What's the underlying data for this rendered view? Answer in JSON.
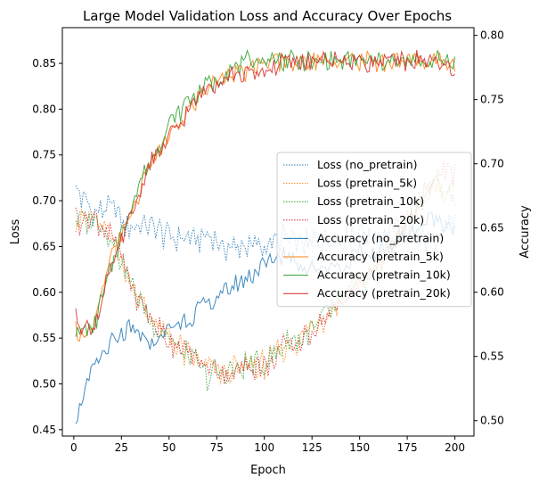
{
  "chart_data": {
    "type": "line",
    "title": "Large Model Validation Loss and Accuracy Over Epochs",
    "xlabel": "Epoch",
    "ylabel_left": "Loss",
    "ylabel_right": "Accuracy",
    "xlim": [
      -6,
      210
    ],
    "ylim_left": [
      0.443,
      0.889
    ],
    "ylim_right": [
      0.488,
      0.806
    ],
    "x_ticks": [
      0,
      25,
      50,
      75,
      100,
      125,
      150,
      175,
      200
    ],
    "y_ticks_left": [
      0.45,
      0.5,
      0.55,
      0.6,
      0.65,
      0.7,
      0.75,
      0.8,
      0.85
    ],
    "y_ticks_right": [
      0.5,
      0.55,
      0.6,
      0.65,
      0.7,
      0.75,
      0.8
    ],
    "grid": false,
    "legend_position": "center-right",
    "x_sampled": [
      1,
      10,
      20,
      30,
      40,
      50,
      60,
      70,
      80,
      90,
      100,
      110,
      120,
      130,
      140,
      150,
      160,
      170,
      180,
      190,
      200
    ],
    "series": [
      {
        "name": "Loss (no_pretrain)",
        "axis": "left",
        "style": "dotted",
        "color": "#1f77b4",
        "values": [
          0.71,
          0.69,
          0.69,
          0.67,
          0.67,
          0.66,
          0.66,
          0.66,
          0.65,
          0.65,
          0.65,
          0.66,
          0.65,
          0.66,
          0.66,
          0.67,
          0.66,
          0.67,
          0.66,
          0.65,
          0.68
        ]
      },
      {
        "name": "Loss (pretrain_5k)",
        "axis": "left",
        "style": "dotted",
        "color": "#ff7f0e",
        "values": [
          0.68,
          0.68,
          0.66,
          0.61,
          0.57,
          0.55,
          0.53,
          0.52,
          0.51,
          0.52,
          0.52,
          0.54,
          0.55,
          0.57,
          0.59,
          0.61,
          0.63,
          0.66,
          0.69,
          0.72,
          0.71
        ]
      },
      {
        "name": "Loss (pretrain_10k)",
        "axis": "left",
        "style": "dotted",
        "color": "#2ca02c",
        "values": [
          0.68,
          0.68,
          0.66,
          0.61,
          0.57,
          0.55,
          0.53,
          0.51,
          0.51,
          0.52,
          0.52,
          0.54,
          0.55,
          0.57,
          0.59,
          0.61,
          0.63,
          0.66,
          0.69,
          0.72,
          0.7
        ]
      },
      {
        "name": "Loss (pretrain_20k)",
        "axis": "left",
        "style": "dotted",
        "color": "#d62728",
        "values": [
          0.68,
          0.68,
          0.66,
          0.61,
          0.57,
          0.55,
          0.53,
          0.52,
          0.51,
          0.52,
          0.52,
          0.54,
          0.55,
          0.57,
          0.59,
          0.61,
          0.63,
          0.66,
          0.69,
          0.73,
          0.73
        ]
      },
      {
        "name": "Accuracy (no_pretrain)",
        "axis": "right",
        "style": "solid",
        "color": "#1f77b4",
        "values": [
          0.5,
          0.54,
          0.56,
          0.57,
          0.56,
          0.57,
          0.58,
          0.59,
          0.6,
          0.61,
          0.62,
          0.63,
          0.62,
          0.62,
          0.62,
          0.63,
          0.63,
          0.64,
          0.65,
          0.66,
          0.65
        ]
      },
      {
        "name": "Accuracy (pretrain_5k)",
        "axis": "right",
        "style": "solid",
        "color": "#ff7f0e",
        "values": [
          0.57,
          0.57,
          0.63,
          0.66,
          0.7,
          0.72,
          0.74,
          0.76,
          0.77,
          0.77,
          0.78,
          0.78,
          0.78,
          0.78,
          0.78,
          0.78,
          0.78,
          0.78,
          0.78,
          0.78,
          0.78
        ]
      },
      {
        "name": "Accuracy (pretrain_10k)",
        "axis": "right",
        "style": "solid",
        "color": "#2ca02c",
        "values": [
          0.57,
          0.57,
          0.62,
          0.67,
          0.7,
          0.73,
          0.75,
          0.76,
          0.77,
          0.78,
          0.78,
          0.78,
          0.78,
          0.78,
          0.78,
          0.78,
          0.78,
          0.78,
          0.78,
          0.78,
          0.78
        ]
      },
      {
        "name": "Accuracy (pretrain_20k)",
        "axis": "right",
        "style": "solid",
        "color": "#d62728",
        "values": [
          0.58,
          0.57,
          0.62,
          0.66,
          0.7,
          0.72,
          0.74,
          0.76,
          0.77,
          0.77,
          0.77,
          0.78,
          0.78,
          0.78,
          0.78,
          0.78,
          0.78,
          0.78,
          0.78,
          0.78,
          0.77
        ]
      }
    ]
  }
}
